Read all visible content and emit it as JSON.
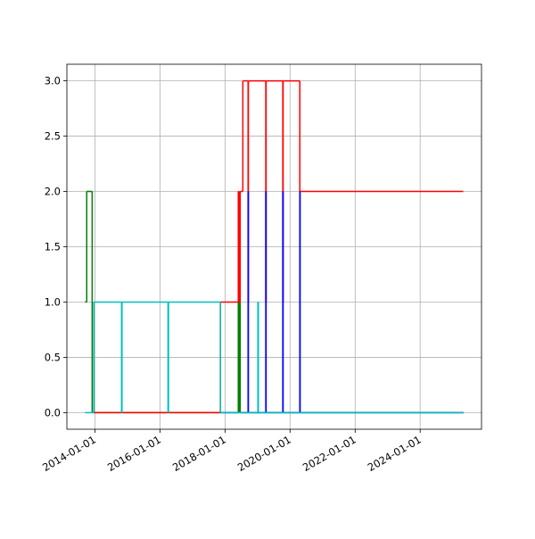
{
  "chart_data": {
    "type": "step",
    "xlim": [
      "2013-02-20",
      "2025-11-20"
    ],
    "xticks": [
      "2014-01-01",
      "2016-01-01",
      "2018-01-01",
      "2020-01-01",
      "2022-01-01",
      "2024-01-01"
    ],
    "ylim": [
      -0.15,
      3.15
    ],
    "yticks": [
      {
        "value": 0,
        "label": "0.0"
      },
      {
        "value": 0.5,
        "label": "0.5"
      },
      {
        "value": 1,
        "label": "1.0"
      },
      {
        "value": 1.5,
        "label": "1.5"
      },
      {
        "value": 2,
        "label": "2.0"
      },
      {
        "value": 2.5,
        "label": "2.5"
      },
      {
        "value": 3,
        "label": "3.0"
      }
    ],
    "grid": true,
    "series": [
      {
        "color": "#008000",
        "x": [
          "2013-09-12",
          "2013-10-01",
          "2013-12-01",
          "2018-05-30",
          "2018-06-05",
          "2018-06-12",
          "2018-06-20",
          "2018-07-01",
          "2025-04-25"
        ],
        "values": [
          1,
          2,
          0,
          1,
          0,
          1,
          0,
          0,
          0
        ]
      },
      {
        "color": "#ff0000",
        "x": [
          "2013-12-20",
          "2017-11-10",
          "2018-05-30",
          "2018-06-10",
          "2018-06-20",
          "2018-07-20",
          "2018-09-17",
          "2018-09-20",
          "2019-04-04",
          "2019-04-07",
          "2019-10-12",
          "2019-10-15",
          "2020-04-20",
          "2025-04-25"
        ],
        "values": [
          0,
          1,
          2,
          1,
          2,
          3,
          1,
          3,
          1,
          3,
          1,
          3,
          2,
          2
        ]
      },
      {
        "color": "#0000ff",
        "x": [
          "2017-11-10",
          "2018-09-17",
          "2018-09-20",
          "2019-04-04",
          "2019-04-07",
          "2019-10-12",
          "2019-10-15",
          "2020-04-20",
          "2020-04-23",
          "2025-04-25"
        ],
        "values": [
          0,
          2,
          0,
          2,
          0,
          2,
          0,
          2,
          0,
          0
        ]
      },
      {
        "color": "#00bfbf",
        "x": [
          "2013-09-12",
          "2013-12-20",
          "2014-10-27",
          "2014-11-01",
          "2016-04-01",
          "2016-04-06",
          "2017-11-10",
          "2019-01-05",
          "2019-01-10",
          "2025-04-25"
        ],
        "values": [
          0,
          1,
          0,
          1,
          0,
          1,
          0,
          1,
          0,
          0
        ]
      }
    ]
  }
}
